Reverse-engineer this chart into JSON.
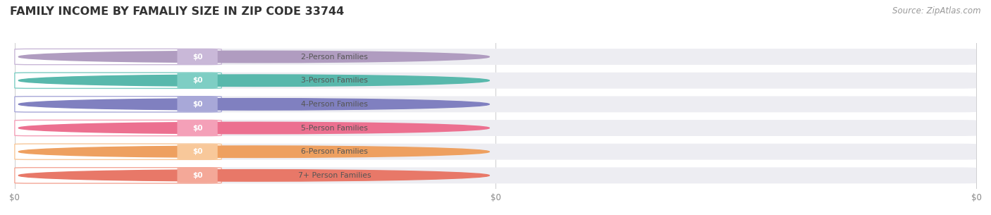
{
  "title": "FAMILY INCOME BY FAMALIY SIZE IN ZIP CODE 33744",
  "source": "Source: ZipAtlas.com",
  "categories": [
    "2-Person Families",
    "3-Person Families",
    "4-Person Families",
    "5-Person Families",
    "6-Person Families",
    "7+ Person Families"
  ],
  "values": [
    0,
    0,
    0,
    0,
    0,
    0
  ],
  "bar_colors": [
    "#c9b8d8",
    "#7ecec4",
    "#a8a8d8",
    "#f4a0b8",
    "#f8c89a",
    "#f4a898"
  ],
  "circle_colors": [
    "#b09cc0",
    "#58b8ac",
    "#8080c0",
    "#ec7090",
    "#eea060",
    "#e87868"
  ],
  "value_labels": [
    "$0",
    "$0",
    "$0",
    "$0",
    "$0",
    "$0"
  ],
  "x_tick_labels": [
    "$0",
    "$0",
    "$0"
  ],
  "x_tick_positions": [
    0.0,
    0.5,
    1.0
  ],
  "bg_color": "#ffffff",
  "bar_bg_color": "#ededf2",
  "title_fontsize": 11.5,
  "source_fontsize": 8.5,
  "label_fontsize": 7.8,
  "value_fontsize": 7.5,
  "tick_fontsize": 8.5,
  "xlim": [
    0.0,
    1.0
  ],
  "bar_height": 0.68
}
